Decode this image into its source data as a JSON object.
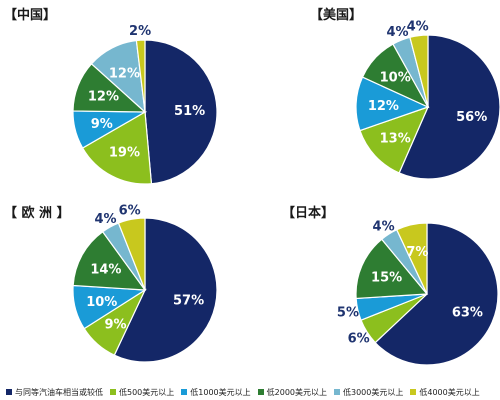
{
  "legend": {
    "items": [
      {
        "label": "与同等汽油车相当或较低",
        "color": "#142767"
      },
      {
        "label": "低500美元以上",
        "color": "#8cbf1e"
      },
      {
        "label": "低1000美元以上",
        "color": "#1a9bd7"
      },
      {
        "label": "低2000美元以上",
        "color": "#2e7d32"
      },
      {
        "label": "低3000美元以上",
        "color": "#76b7cf"
      },
      {
        "label": "低4000美元以上",
        "color": "#c8c81e"
      }
    ]
  },
  "chart_data": [
    {
      "type": "pie",
      "title": "【中国】",
      "categories": [
        "与同等汽油车相当或较低",
        "低500美元以上",
        "低1000美元以上",
        "低2000美元以上",
        "低3000美元以上",
        "低4000美元以上"
      ],
      "values": [
        51,
        19,
        9,
        12,
        12,
        2
      ],
      "labels": [
        "51%",
        "19%",
        "9%",
        "12%",
        "12%",
        "2%"
      ]
    },
    {
      "type": "pie",
      "title": "【美国】",
      "categories": [
        "与同等汽油车相当或较低",
        "低500美元以上",
        "低1000美元以上",
        "低2000美元以上",
        "低3000美元以上",
        "低4000美元以上"
      ],
      "values": [
        56,
        13,
        12,
        10,
        4,
        4
      ],
      "labels": [
        "56%",
        "13%",
        "12%",
        "10%",
        "4%",
        "4%"
      ]
    },
    {
      "type": "pie",
      "title": "【 欧 洲 】",
      "categories": [
        "与同等汽油车相当或较低",
        "低500美元以上",
        "低1000美元以上",
        "低2000美元以上",
        "低3000美元以上",
        "低4000美元以上"
      ],
      "values": [
        57,
        9,
        10,
        14,
        4,
        6
      ],
      "labels": [
        "57%",
        "9%",
        "10%",
        "14%",
        "4%",
        "6%"
      ]
    },
    {
      "type": "pie",
      "title": "【日本】",
      "categories": [
        "与同等汽油车相当或较低",
        "低500美元以上",
        "低1000美元以上",
        "低2000美元以上",
        "低3000美元以上",
        "低4000美元以上"
      ],
      "values": [
        63,
        6,
        5,
        15,
        4,
        7
      ],
      "labels": [
        "63%",
        "6%",
        "5%",
        "15%",
        "4%",
        "7%"
      ]
    }
  ]
}
